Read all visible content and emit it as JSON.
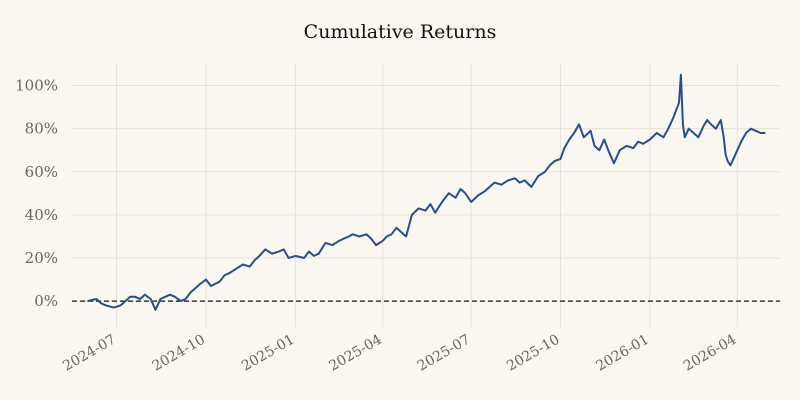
{
  "chart_data": {
    "type": "line",
    "title": "Cumulative Returns",
    "xlabel": "",
    "ylabel": "",
    "grid": true,
    "legend": "none",
    "x_range": [
      "2024-05-16",
      "2026-05-15"
    ],
    "ylim": [
      -0.12,
      1.1
    ],
    "y_ticks": [
      0,
      0.2,
      0.4,
      0.6,
      0.8,
      1.0
    ],
    "y_tick_labels": [
      "0%",
      "20%",
      "40%",
      "60%",
      "80%",
      "100%"
    ],
    "x_ticks": [
      "2024-07-01",
      "2024-10-01",
      "2025-01-01",
      "2025-04-01",
      "2025-07-01",
      "2025-10-01",
      "2026-01-01",
      "2026-04-01"
    ],
    "x_tick_labels": [
      "2024-07",
      "2024-10",
      "2025-01",
      "2025-04",
      "2025-07",
      "2025-10",
      "2026-01",
      "2026-04"
    ],
    "baseline": {
      "y": 0,
      "style": "dashed",
      "color": "#111111"
    },
    "colors": {
      "line": "#2a4d8c",
      "background": "#faf7f0",
      "grid": "#e6e1d6"
    },
    "series": [
      {
        "x": [
          "2024-06-01",
          "2024-06-10",
          "2024-06-15",
          "2024-06-20",
          "2024-06-28",
          "2024-07-05",
          "2024-07-10",
          "2024-07-15",
          "2024-07-20",
          "2024-07-25",
          "2024-07-30",
          "2024-08-05",
          "2024-08-10",
          "2024-08-15",
          "2024-08-20",
          "2024-08-25",
          "2024-08-30",
          "2024-09-05",
          "2024-09-10",
          "2024-09-15",
          "2024-09-20",
          "2024-09-25",
          "2024-10-01",
          "2024-10-06",
          "2024-10-15",
          "2024-10-20",
          "2024-10-25",
          "2024-11-01",
          "2024-11-08",
          "2024-11-15",
          "2024-11-20",
          "2024-11-25",
          "2024-12-01",
          "2024-12-08",
          "2024-12-15",
          "2024-12-20",
          "2024-12-25",
          "2025-01-01",
          "2025-01-10",
          "2025-01-15",
          "2025-01-20",
          "2025-01-25",
          "2025-02-01",
          "2025-02-08",
          "2025-02-15",
          "2025-02-20",
          "2025-02-25",
          "2025-03-01",
          "2025-03-08",
          "2025-03-15",
          "2025-03-20",
          "2025-03-25",
          "2025-04-01",
          "2025-04-05",
          "2025-04-10",
          "2025-04-15",
          "2025-04-20",
          "2025-04-25",
          "2025-05-01",
          "2025-05-08",
          "2025-05-15",
          "2025-05-20",
          "2025-05-25",
          "2025-06-01",
          "2025-06-08",
          "2025-06-15",
          "2025-06-20",
          "2025-06-25",
          "2025-07-01",
          "2025-07-08",
          "2025-07-15",
          "2025-07-20",
          "2025-07-25",
          "2025-08-01",
          "2025-08-08",
          "2025-08-15",
          "2025-08-20",
          "2025-08-25",
          "2025-09-01",
          "2025-09-08",
          "2025-09-15",
          "2025-09-20",
          "2025-09-25",
          "2025-10-01",
          "2025-10-05",
          "2025-10-10",
          "2025-10-15",
          "2025-10-20",
          "2025-10-25",
          "2025-11-01",
          "2025-11-05",
          "2025-11-10",
          "2025-11-15",
          "2025-11-20",
          "2025-11-25",
          "2025-12-01",
          "2025-12-08",
          "2025-12-15",
          "2025-12-20",
          "2025-12-25",
          "2026-01-01",
          "2026-01-08",
          "2026-01-15",
          "2026-01-20",
          "2026-01-25",
          "2026-01-31",
          "2026-02-02",
          "2026-02-04",
          "2026-02-06",
          "2026-02-10",
          "2026-02-15",
          "2026-02-20",
          "2026-02-25",
          "2026-03-01",
          "2026-03-05",
          "2026-03-10",
          "2026-03-15",
          "2026-03-18",
          "2026-03-20",
          "2026-03-22",
          "2026-03-25",
          "2026-03-28",
          "2026-04-01",
          "2026-04-05",
          "2026-04-10",
          "2026-04-15",
          "2026-04-20",
          "2026-04-25",
          "2026-04-30"
        ],
        "y": [
          0.0,
          0.01,
          -0.01,
          -0.02,
          -0.03,
          -0.02,
          0.0,
          0.02,
          0.02,
          0.01,
          0.03,
          0.01,
          -0.04,
          0.01,
          0.02,
          0.03,
          0.02,
          0.0,
          0.01,
          0.04,
          0.06,
          0.08,
          0.1,
          0.07,
          0.09,
          0.12,
          0.13,
          0.15,
          0.17,
          0.16,
          0.19,
          0.21,
          0.24,
          0.22,
          0.23,
          0.24,
          0.2,
          0.21,
          0.2,
          0.23,
          0.21,
          0.22,
          0.27,
          0.26,
          0.28,
          0.29,
          0.3,
          0.31,
          0.3,
          0.31,
          0.29,
          0.26,
          0.28,
          0.3,
          0.31,
          0.34,
          0.32,
          0.3,
          0.4,
          0.43,
          0.42,
          0.45,
          0.41,
          0.46,
          0.5,
          0.48,
          0.52,
          0.5,
          0.46,
          0.49,
          0.51,
          0.53,
          0.55,
          0.54,
          0.56,
          0.57,
          0.55,
          0.56,
          0.53,
          0.58,
          0.6,
          0.63,
          0.65,
          0.66,
          0.71,
          0.75,
          0.78,
          0.82,
          0.76,
          0.79,
          0.72,
          0.7,
          0.75,
          0.69,
          0.64,
          0.7,
          0.72,
          0.71,
          0.74,
          0.73,
          0.75,
          0.78,
          0.76,
          0.8,
          0.85,
          0.92,
          1.05,
          0.82,
          0.76,
          0.8,
          0.78,
          0.76,
          0.81,
          0.84,
          0.82,
          0.8,
          0.84,
          0.76,
          0.68,
          0.65,
          0.63,
          0.66,
          0.7,
          0.74,
          0.78,
          0.8,
          0.79,
          0.78,
          0.78
        ]
      }
    ]
  }
}
